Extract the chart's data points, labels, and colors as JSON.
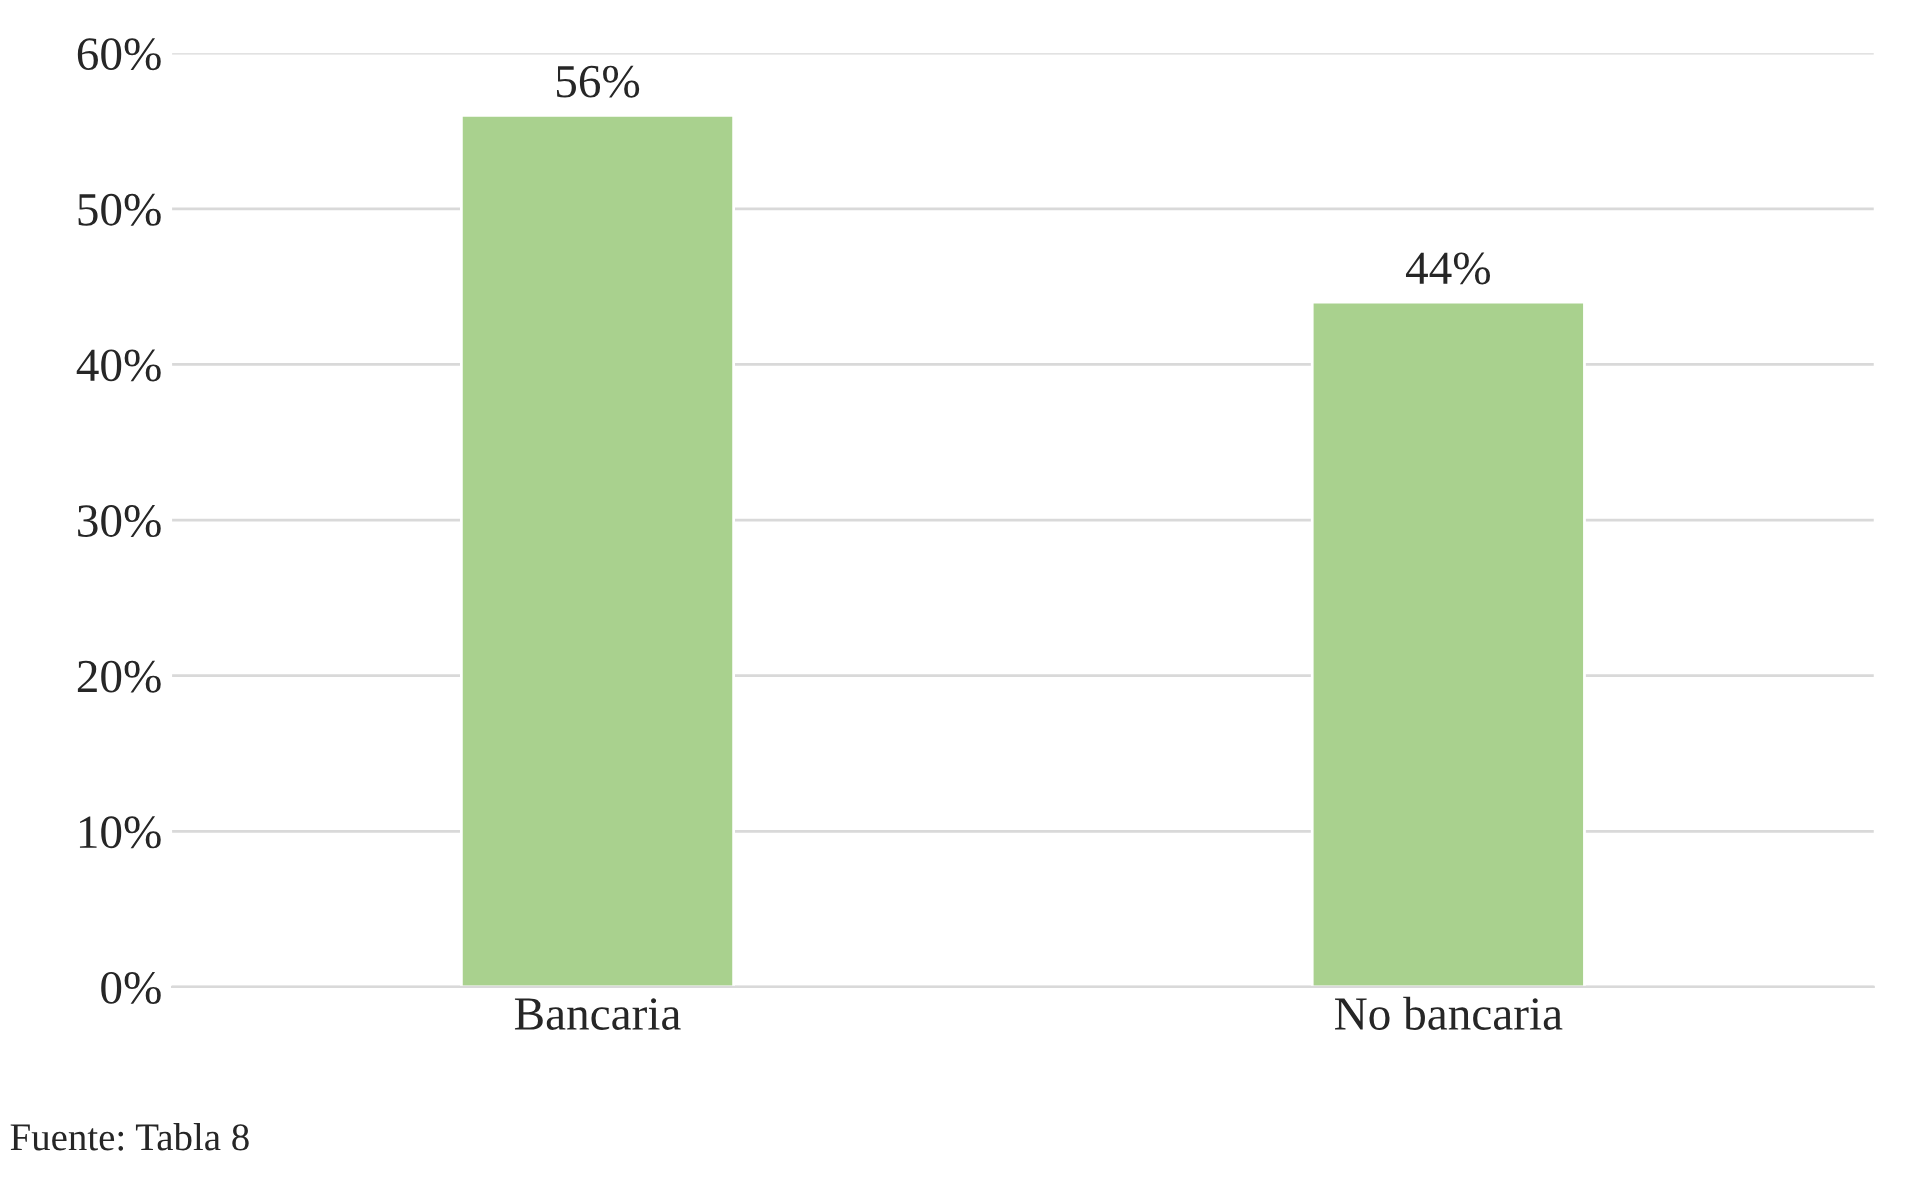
{
  "chart_data": {
    "type": "bar",
    "categories": [
      "Bancaria",
      "No bancaria"
    ],
    "values": [
      56,
      44
    ],
    "color": "#a9d18e",
    "data_labels": true,
    "value_labels": [
      "56%",
      "44%"
    ],
    "ylim": [
      0,
      60
    ],
    "yticks": [
      {
        "value": 0,
        "label": "0%"
      },
      {
        "value": 10,
        "label": "10%"
      },
      {
        "value": 20,
        "label": "20%"
      },
      {
        "value": 30,
        "label": "30%"
      },
      {
        "value": 40,
        "label": "40%"
      },
      {
        "value": 50,
        "label": "50%"
      },
      {
        "value": 60,
        "label": "60%"
      }
    ],
    "grid": "y",
    "legend": false,
    "annotations": [
      "Fuente: Tabla 8"
    ]
  }
}
